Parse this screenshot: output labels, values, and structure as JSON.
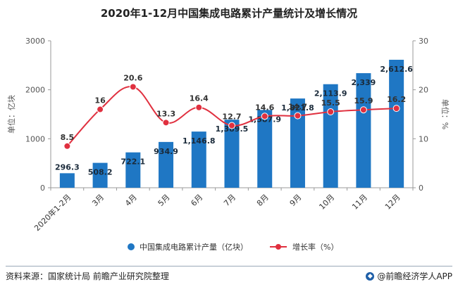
{
  "chart_data": {
    "type": "bar",
    "title": "2020年1-12月中国集成电路累计产量统计及增长情况",
    "categories": [
      "2020年1-2月",
      "3月",
      "4月",
      "5月",
      "6月",
      "7月",
      "8月",
      "9月",
      "10月",
      "11月",
      "12月"
    ],
    "series": [
      {
        "name": "中国集成电路累计产量（亿块）",
        "type": "bar",
        "axis": "left",
        "values": [
          296.3,
          508.2,
          722.1,
          934.9,
          1146.8,
          1389.5,
          1587.9,
          1821.8,
          2113.9,
          2339,
          2612.6
        ],
        "labels": [
          "296.3",
          "508.2",
          "722.1",
          "934.9",
          "1,146.8",
          "1,389.5",
          "1,587.9",
          "1,821.8",
          "2,113.9",
          "2,339",
          "2,612.6"
        ]
      },
      {
        "name": "增长率（%）",
        "type": "line",
        "axis": "right",
        "values": [
          8.5,
          16,
          20.6,
          13.3,
          16.4,
          12.7,
          14.6,
          14.7,
          15.5,
          15.9,
          16.2
        ],
        "labels": [
          "8.5",
          "16",
          "20.6",
          "13.3",
          "16.4",
          "12.7",
          "14.6",
          "14.7",
          "15.5",
          "15.9",
          "16.2"
        ]
      }
    ],
    "y_left": {
      "label": "单位：亿块",
      "ylim": [
        0,
        3000
      ],
      "ticks": [
        "0",
        "1000",
        "2000",
        "3000"
      ]
    },
    "y_right": {
      "label": "单位：%",
      "ylim": [
        0,
        30
      ],
      "ticks": [
        "0",
        "10",
        "20",
        "30"
      ]
    },
    "grid": false,
    "legend_position": "bottom-center",
    "colors": {
      "bar": "#1f77c4",
      "line": "#e0303f",
      "axis": "#999999",
      "bar_label": "#1a2a3a"
    }
  },
  "footer": {
    "source": "资料来源：国家统计局 前瞻产业研究院整理",
    "brand": "@前瞻经济学人APP"
  }
}
